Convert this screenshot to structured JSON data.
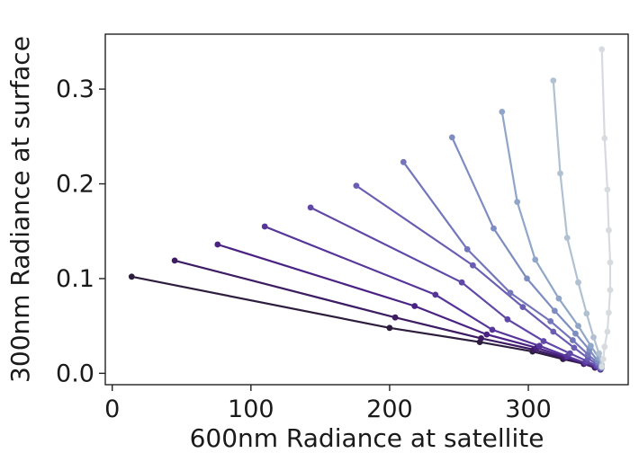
{
  "chart_data": {
    "type": "line",
    "title": "",
    "xlabel": "600nm Radiance at satellite",
    "ylabel": "300nm Radiance at surface",
    "xlim": [
      -5,
      372
    ],
    "ylim": [
      -0.012,
      0.358
    ],
    "xticks": [
      0,
      100,
      200,
      300
    ],
    "xtick_labels": [
      "0",
      "100",
      "200",
      "300"
    ],
    "yticks": [
      0.0,
      0.1,
      0.2,
      0.3
    ],
    "ytick_labels": [
      "0.0",
      "0.1",
      "0.2",
      "0.3"
    ],
    "grid": false,
    "legend": false,
    "markers": true,
    "series_endpoints_note": "each curve runs from its first point to a common convergence near x=353, y=0.005",
    "series": [
      {
        "color": "#2d1e3e",
        "points": [
          [
            14,
            0.102
          ],
          [
            200,
            0.048
          ],
          [
            265,
            0.033
          ],
          [
            303,
            0.023
          ],
          [
            325,
            0.015
          ],
          [
            340,
            0.01
          ],
          [
            348,
            0.006
          ],
          [
            352,
            0.004
          ]
        ]
      },
      {
        "color": "#3d1c63",
        "points": [
          [
            45,
            0.119
          ],
          [
            204,
            0.059
          ],
          [
            266,
            0.037
          ],
          [
            304,
            0.025
          ],
          [
            326,
            0.016
          ],
          [
            340,
            0.01
          ],
          [
            348,
            0.006
          ],
          [
            352,
            0.004
          ]
        ]
      },
      {
        "color": "#4a2284",
        "points": [
          [
            76,
            0.136
          ],
          [
            218,
            0.071
          ],
          [
            270,
            0.041
          ],
          [
            306,
            0.027
          ],
          [
            327,
            0.017
          ],
          [
            341,
            0.011
          ],
          [
            349,
            0.007
          ],
          [
            352,
            0.004
          ]
        ]
      },
      {
        "color": "#56369a",
        "points": [
          [
            110,
            0.155
          ],
          [
            233,
            0.083
          ],
          [
            274,
            0.046
          ],
          [
            308,
            0.029
          ],
          [
            328,
            0.018
          ],
          [
            341,
            0.011
          ],
          [
            349,
            0.007
          ],
          [
            352,
            0.005
          ]
        ]
      },
      {
        "color": "#6048a8",
        "points": [
          [
            143,
            0.175
          ],
          [
            252,
            0.096
          ],
          [
            285,
            0.057
          ],
          [
            311,
            0.034
          ],
          [
            330,
            0.021
          ],
          [
            342,
            0.013
          ],
          [
            349,
            0.008
          ],
          [
            352,
            0.005
          ]
        ]
      },
      {
        "color": "#6a5eb3",
        "points": [
          [
            176,
            0.198
          ],
          [
            260,
            0.114
          ],
          [
            296,
            0.07
          ],
          [
            318,
            0.044
          ],
          [
            333,
            0.027
          ],
          [
            343,
            0.016
          ],
          [
            350,
            0.009
          ],
          [
            352,
            0.005
          ]
        ]
      },
      {
        "color": "#7476ba",
        "points": [
          [
            210,
            0.223
          ],
          [
            256,
            0.131
          ],
          [
            287,
            0.085
          ],
          [
            316,
            0.055
          ],
          [
            332,
            0.035
          ],
          [
            343,
            0.02
          ],
          [
            350,
            0.011
          ],
          [
            352,
            0.006
          ]
        ]
      },
      {
        "color": "#7e8dc0",
        "points": [
          [
            245,
            0.249
          ],
          [
            275,
            0.153
          ],
          [
            299,
            0.1
          ],
          [
            319,
            0.066
          ],
          [
            334,
            0.042
          ],
          [
            344,
            0.025
          ],
          [
            350,
            0.013
          ],
          [
            353,
            0.006
          ]
        ]
      },
      {
        "color": "#90a6c8",
        "points": [
          [
            281,
            0.276
          ],
          [
            292,
            0.181
          ],
          [
            305,
            0.12
          ],
          [
            322,
            0.079
          ],
          [
            336,
            0.05
          ],
          [
            345,
            0.029
          ],
          [
            351,
            0.016
          ],
          [
            353,
            0.007
          ]
        ]
      },
      {
        "color": "#b1c1d2",
        "points": [
          [
            318,
            0.309
          ],
          [
            323,
            0.211
          ],
          [
            328,
            0.143
          ],
          [
            336,
            0.096
          ],
          [
            342,
            0.063
          ],
          [
            347,
            0.038
          ],
          [
            351,
            0.021
          ],
          [
            353,
            0.009
          ]
        ]
      },
      {
        "color": "#d7dadf",
        "points": [
          [
            353,
            0.342
          ],
          [
            355,
            0.248
          ],
          [
            357,
            0.194
          ],
          [
            358,
            0.151
          ],
          [
            359,
            0.117
          ],
          [
            359,
            0.088
          ],
          [
            358,
            0.064
          ],
          [
            357,
            0.044
          ],
          [
            355,
            0.028
          ],
          [
            354,
            0.015
          ],
          [
            353,
            0.007
          ]
        ]
      }
    ]
  }
}
